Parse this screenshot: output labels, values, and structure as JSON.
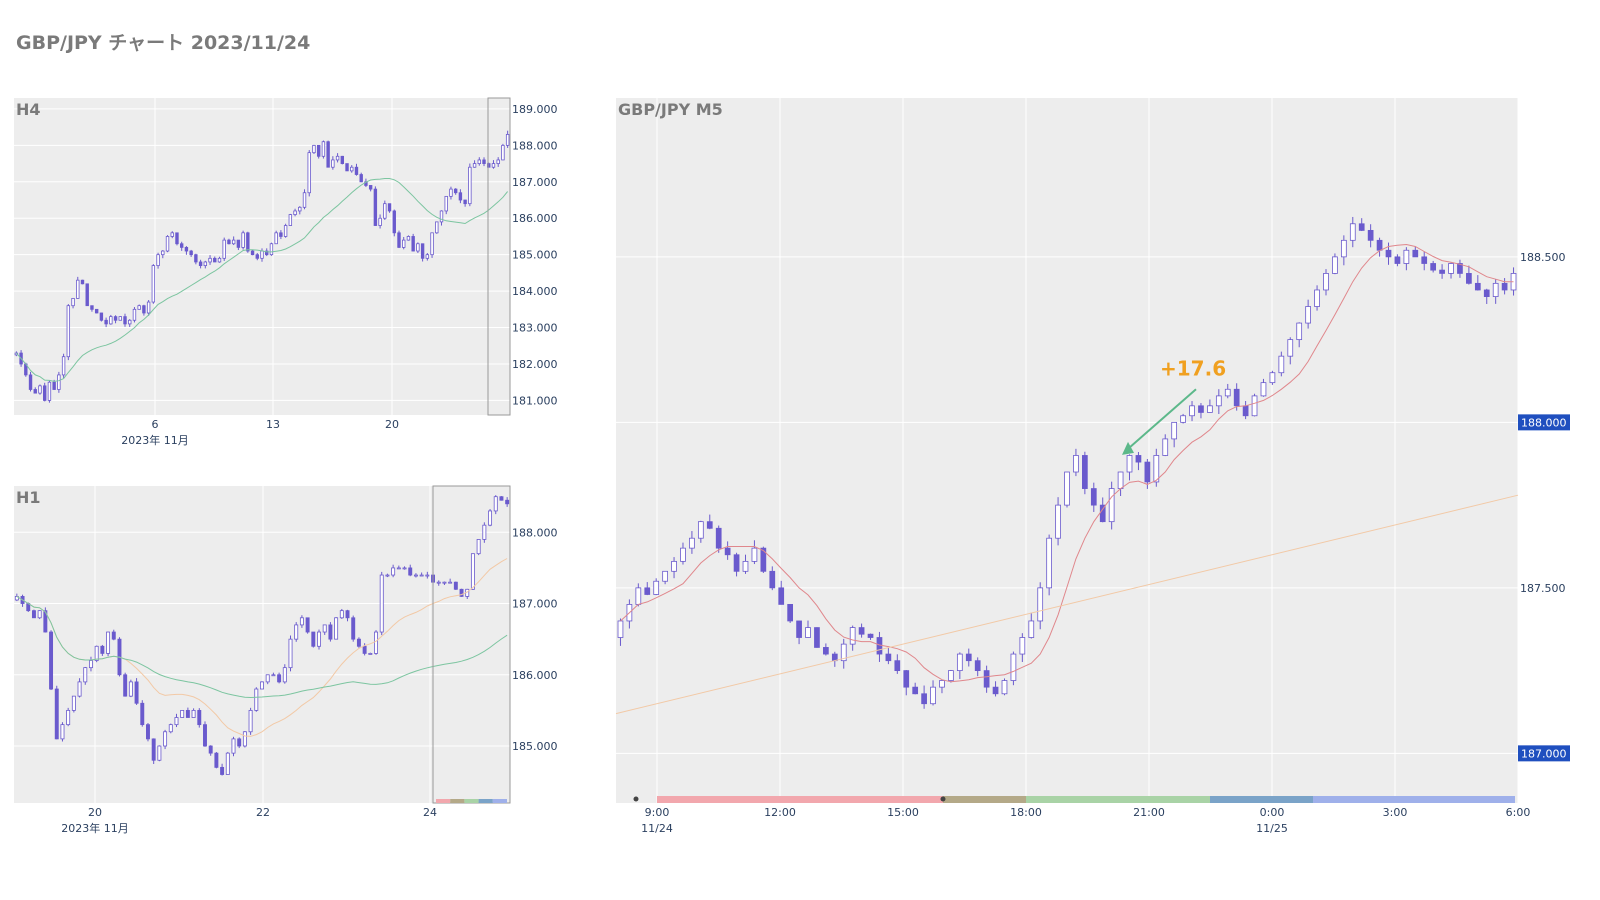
{
  "page": {
    "title": "GBP/JPY チャート 2023/11/24"
  },
  "colors": {
    "plot_bg": "#ededed",
    "grid": "#ffffff",
    "candle": "#6a5acd",
    "ma_short_m5": "#e0878c",
    "ma_long_m5": "#f2c9a6",
    "ma_h4": "#7cc5a0",
    "ma_h1_fast": "#f2c9a6",
    "ma_h1_slow": "#7cc5a0",
    "arrow": "#5cb88a",
    "annotation": "#f0a020",
    "price_badge": "#1f4fbf",
    "session_bars": [
      "#f2a7ad",
      "#b4a988",
      "#a9d3a6",
      "#7aa3c8",
      "#9fb0ea"
    ]
  },
  "chart_data": [
    {
      "id": "h4",
      "type": "candlestick",
      "label": "H4",
      "x_ticks": [
        "6",
        "13",
        "20"
      ],
      "x_subtitle": "2023年 11月",
      "y_ticks": [
        "181.000",
        "182.000",
        "183.000",
        "184.000",
        "185.000",
        "186.000",
        "187.000",
        "188.000",
        "189.000"
      ],
      "ylim": [
        180.6,
        189.3
      ],
      "closes": [
        182.3,
        182.0,
        181.7,
        181.3,
        181.2,
        181.4,
        181.0,
        181.5,
        181.3,
        181.7,
        182.2,
        183.6,
        183.8,
        184.3,
        184.2,
        183.6,
        183.5,
        183.4,
        183.2,
        183.1,
        183.3,
        183.2,
        183.3,
        183.1,
        183.2,
        183.5,
        183.6,
        183.4,
        183.7,
        184.7,
        185.0,
        185.1,
        185.5,
        185.6,
        185.3,
        185.2,
        185.1,
        185.0,
        184.8,
        184.7,
        184.8,
        184.9,
        184.8,
        184.9,
        185.4,
        185.3,
        185.4,
        185.2,
        185.6,
        185.1,
        185.0,
        184.9,
        185.1,
        185.0,
        185.3,
        185.6,
        185.5,
        185.8,
        186.1,
        186.2,
        186.3,
        186.7,
        187.8,
        188.0,
        187.7,
        188.1,
        187.4,
        187.6,
        187.7,
        187.5,
        187.3,
        187.4,
        187.2,
        187.0,
        186.9,
        186.8,
        185.8,
        186.0,
        186.4,
        186.2,
        185.6,
        185.2,
        185.4,
        185.5,
        185.1,
        185.3,
        184.9,
        185.0,
        185.6,
        185.9,
        186.2,
        186.6,
        186.8,
        186.7,
        186.5,
        186.4,
        187.4,
        187.5,
        187.6,
        187.5,
        187.4,
        187.5,
        187.6,
        188.0,
        188.3
      ]
    },
    {
      "id": "h1",
      "type": "candlestick",
      "label": "H1",
      "x_ticks": [
        "20",
        "22",
        "24"
      ],
      "x_subtitle": "2023年 11月",
      "y_ticks": [
        "185.000",
        "186.000",
        "187.000",
        "188.000"
      ],
      "ylim": [
        184.2,
        188.65
      ],
      "closes": [
        187.1,
        187.0,
        186.9,
        186.8,
        186.9,
        186.6,
        185.8,
        185.1,
        185.3,
        185.5,
        185.7,
        185.9,
        186.1,
        186.2,
        186.4,
        186.3,
        186.6,
        186.5,
        186.0,
        185.7,
        185.9,
        185.6,
        185.3,
        185.1,
        184.8,
        185.0,
        185.2,
        185.3,
        185.4,
        185.5,
        185.4,
        185.5,
        185.3,
        185.0,
        184.9,
        184.7,
        184.6,
        184.9,
        185.1,
        185.0,
        185.2,
        185.5,
        185.8,
        185.9,
        186.0,
        186.0,
        185.9,
        186.1,
        186.5,
        186.7,
        186.8,
        186.6,
        186.4,
        186.6,
        186.7,
        186.5,
        186.8,
        186.9,
        186.8,
        186.5,
        186.4,
        186.3,
        186.3,
        186.6,
        187.4,
        187.4,
        187.5,
        187.5,
        187.5,
        187.4,
        187.4,
        187.4,
        187.4,
        187.3,
        187.3,
        187.3,
        187.3,
        187.2,
        187.1,
        187.2,
        187.7,
        187.9,
        188.1,
        188.3,
        188.5,
        188.45,
        188.4
      ]
    },
    {
      "id": "m5",
      "type": "candlestick",
      "label": "GBP/JPY M5",
      "x_ticks": [
        "9:00",
        "12:00",
        "15:00",
        "18:00",
        "21:00",
        "0:00",
        "3:00",
        "6:00"
      ],
      "x_subticks": [
        "11/24",
        "11/25"
      ],
      "y_ticks": [
        "187.500",
        "188.500"
      ],
      "y_badges": [
        "187.000",
        "188.000"
      ],
      "ylim": [
        186.85,
        188.98
      ],
      "annotation": {
        "text": "+17.6",
        "from_price": 187.92,
        "to_price": 188.1
      },
      "closes": [
        187.4,
        187.45,
        187.5,
        187.48,
        187.52,
        187.55,
        187.58,
        187.62,
        187.65,
        187.7,
        187.68,
        187.62,
        187.6,
        187.55,
        187.58,
        187.62,
        187.55,
        187.5,
        187.45,
        187.4,
        187.35,
        187.38,
        187.32,
        187.3,
        187.28,
        187.33,
        187.38,
        187.36,
        187.35,
        187.3,
        187.28,
        187.25,
        187.2,
        187.18,
        187.15,
        187.2,
        187.22,
        187.25,
        187.3,
        187.28,
        187.25,
        187.2,
        187.18,
        187.22,
        187.3,
        187.35,
        187.4,
        187.5,
        187.65,
        187.75,
        187.85,
        187.9,
        187.8,
        187.75,
        187.7,
        187.8,
        187.85,
        187.9,
        187.88,
        187.82,
        187.9,
        187.95,
        188.0,
        188.02,
        188.05,
        188.03,
        188.05,
        188.08,
        188.1,
        188.05,
        188.02,
        188.08,
        188.12,
        188.15,
        188.2,
        188.25,
        188.3,
        188.35,
        188.4,
        188.45,
        188.5,
        188.55,
        188.6,
        188.58,
        188.55,
        188.52,
        188.5,
        188.48,
        188.52,
        188.5,
        188.48,
        188.46,
        188.45,
        188.48,
        188.45,
        188.42,
        188.4,
        188.38,
        188.42,
        188.4,
        188.45
      ]
    }
  ]
}
